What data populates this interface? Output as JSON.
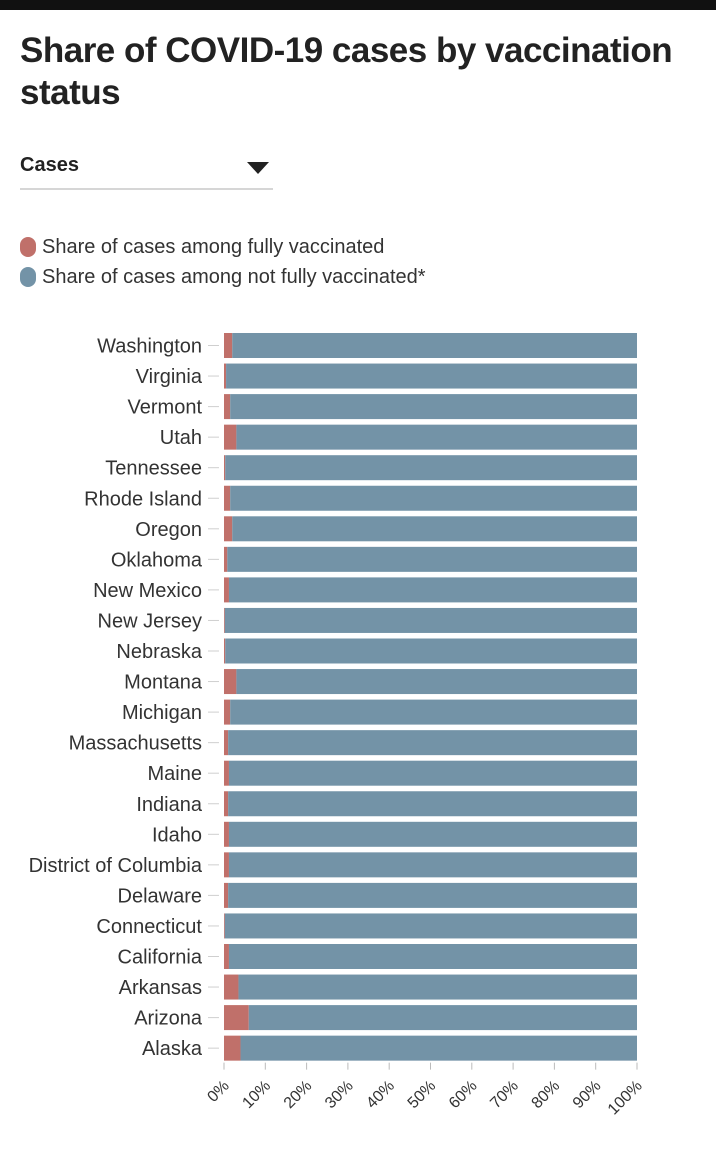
{
  "title": "Share of COVID-19 cases by vaccination status",
  "dropdown": {
    "selected": "Cases"
  },
  "colors": {
    "vaccinated": "#c0706a",
    "not_vaccinated": "#7393a7"
  },
  "chart_data": {
    "type": "bar",
    "orientation": "horizontal",
    "stacked": true,
    "categories": [
      "Washington",
      "Virginia",
      "Vermont",
      "Utah",
      "Tennessee",
      "Rhode Island",
      "Oregon",
      "Oklahoma",
      "New Mexico",
      "New Jersey",
      "Nebraska",
      "Montana",
      "Michigan",
      "Massachusetts",
      "Maine",
      "Indiana",
      "Idaho",
      "District of Columbia",
      "Delaware",
      "Connecticut",
      "California",
      "Arkansas",
      "Arizona",
      "Alaska"
    ],
    "series": [
      {
        "name": "Share of cases among fully vaccinated",
        "values": [
          2,
          0.5,
          1.5,
          3,
          0.3,
          1.5,
          2,
          0.8,
          1.2,
          0.2,
          0.3,
          3,
          1.5,
          1,
          1.2,
          1,
          1.2,
          1.2,
          1,
          0.2,
          1.2,
          3.5,
          6,
          4
        ]
      },
      {
        "name": "Share of cases among not fully vaccinated*",
        "values": [
          98,
          99.5,
          98.5,
          97,
          99.7,
          98.5,
          98,
          99.2,
          98.8,
          99.8,
          99.7,
          97,
          98.5,
          99,
          98.8,
          99,
          98.8,
          98.8,
          99,
          99.8,
          98.8,
          96.5,
          94,
          96
        ]
      }
    ],
    "x_ticks": [
      "0%",
      "10%",
      "20%",
      "30%",
      "40%",
      "50%",
      "60%",
      "70%",
      "80%",
      "90%",
      "100%"
    ],
    "xlim": [
      0,
      100
    ],
    "xlabel": "",
    "ylabel": "",
    "grid": false,
    "legend_position": "top-left"
  }
}
